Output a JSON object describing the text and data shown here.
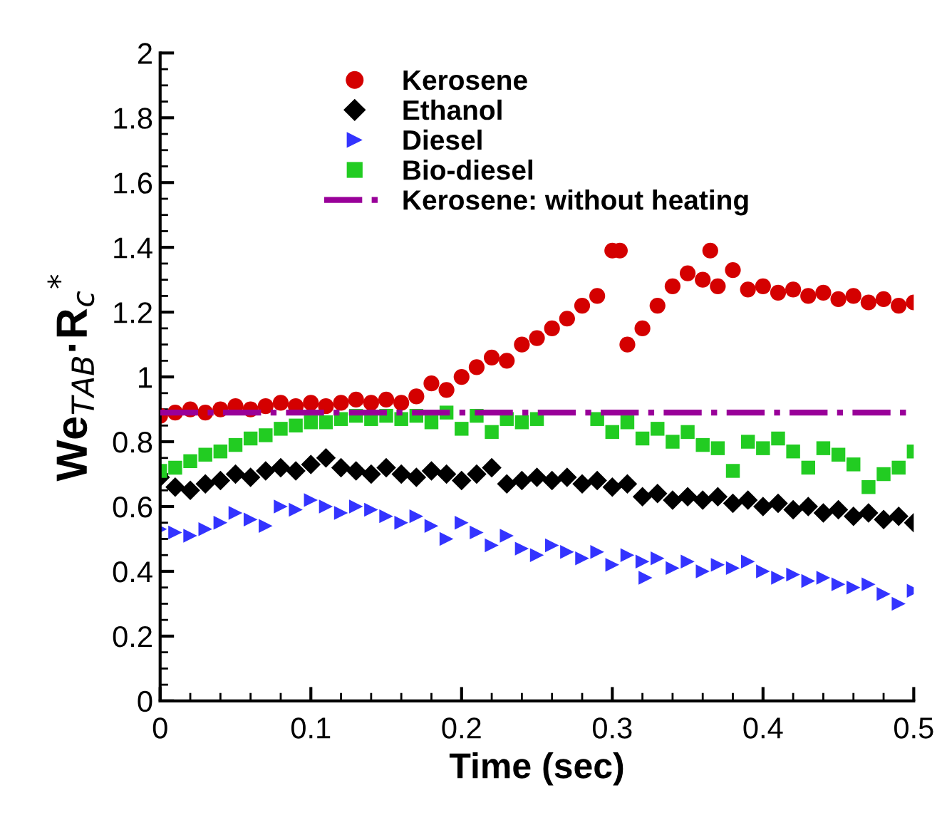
{
  "chart_data": {
    "type": "scatter",
    "xlabel": "Time (sec)",
    "ylabel": "We$_{TAB}$·R$_{c}$$^{*}$",
    "xlim": [
      0,
      0.5
    ],
    "ylim": [
      0,
      2
    ],
    "xticks": [
      0,
      0.1,
      0.2,
      0.3,
      0.4,
      0.5
    ],
    "yticks": [
      0,
      0.2,
      0.4,
      0.6,
      0.8,
      1,
      1.2,
      1.4,
      1.6,
      1.8,
      2
    ],
    "grid": false,
    "legend": "top",
    "series": [
      {
        "name": "Kerosene",
        "color": "#d40000",
        "marker": "circle",
        "x": [
          0,
          0.01,
          0.02,
          0.03,
          0.04,
          0.05,
          0.06,
          0.07,
          0.08,
          0.09,
          0.1,
          0.11,
          0.12,
          0.13,
          0.14,
          0.15,
          0.16,
          0.17,
          0.18,
          0.19,
          0.2,
          0.21,
          0.22,
          0.23,
          0.24,
          0.25,
          0.26,
          0.27,
          0.28,
          0.29,
          0.3,
          0.305,
          0.31,
          0.32,
          0.33,
          0.34,
          0.35,
          0.36,
          0.365,
          0.37,
          0.38,
          0.39,
          0.4,
          0.41,
          0.42,
          0.43,
          0.44,
          0.45,
          0.46,
          0.47,
          0.48,
          0.49,
          0.5
        ],
        "values": [
          0.88,
          0.89,
          0.9,
          0.89,
          0.9,
          0.91,
          0.9,
          0.91,
          0.92,
          0.91,
          0.92,
          0.91,
          0.92,
          0.93,
          0.92,
          0.93,
          0.92,
          0.94,
          0.98,
          0.96,
          1.0,
          1.03,
          1.06,
          1.05,
          1.1,
          1.12,
          1.15,
          1.18,
          1.22,
          1.25,
          1.39,
          1.39,
          1.1,
          1.15,
          1.22,
          1.28,
          1.32,
          1.3,
          1.39,
          1.28,
          1.33,
          1.27,
          1.28,
          1.26,
          1.27,
          1.25,
          1.26,
          1.24,
          1.25,
          1.23,
          1.24,
          1.22,
          1.23
        ]
      },
      {
        "name": "Ethanol",
        "color": "#000000",
        "marker": "diamond",
        "x": [
          0,
          0.01,
          0.02,
          0.03,
          0.04,
          0.05,
          0.06,
          0.07,
          0.08,
          0.09,
          0.1,
          0.11,
          0.12,
          0.13,
          0.14,
          0.15,
          0.16,
          0.17,
          0.18,
          0.19,
          0.2,
          0.21,
          0.22,
          0.23,
          0.24,
          0.25,
          0.26,
          0.27,
          0.28,
          0.29,
          0.3,
          0.31,
          0.32,
          0.33,
          0.34,
          0.35,
          0.36,
          0.37,
          0.38,
          0.39,
          0.4,
          0.41,
          0.42,
          0.43,
          0.44,
          0.45,
          0.46,
          0.47,
          0.48,
          0.49,
          0.5
        ],
        "values": [
          0.69,
          0.66,
          0.65,
          0.67,
          0.68,
          0.7,
          0.69,
          0.71,
          0.72,
          0.71,
          0.73,
          0.75,
          0.72,
          0.71,
          0.7,
          0.72,
          0.7,
          0.69,
          0.71,
          0.7,
          0.68,
          0.7,
          0.72,
          0.67,
          0.68,
          0.69,
          0.68,
          0.69,
          0.67,
          0.68,
          0.66,
          0.67,
          0.63,
          0.64,
          0.62,
          0.63,
          0.62,
          0.63,
          0.61,
          0.62,
          0.6,
          0.61,
          0.59,
          0.6,
          0.58,
          0.59,
          0.57,
          0.58,
          0.56,
          0.57,
          0.55
        ]
      },
      {
        "name": "Diesel",
        "color": "#3333ff",
        "marker": "triangle",
        "x": [
          0,
          0.01,
          0.02,
          0.03,
          0.04,
          0.05,
          0.06,
          0.07,
          0.08,
          0.09,
          0.1,
          0.11,
          0.12,
          0.13,
          0.14,
          0.15,
          0.16,
          0.17,
          0.18,
          0.19,
          0.2,
          0.21,
          0.22,
          0.23,
          0.24,
          0.25,
          0.26,
          0.27,
          0.28,
          0.29,
          0.3,
          0.31,
          0.32,
          0.322,
          0.33,
          0.34,
          0.35,
          0.36,
          0.37,
          0.38,
          0.39,
          0.4,
          0.41,
          0.42,
          0.43,
          0.44,
          0.45,
          0.46,
          0.47,
          0.48,
          0.49,
          0.5
        ],
        "values": [
          0.53,
          0.52,
          0.51,
          0.53,
          0.55,
          0.58,
          0.56,
          0.54,
          0.6,
          0.59,
          0.62,
          0.6,
          0.58,
          0.6,
          0.59,
          0.57,
          0.55,
          0.57,
          0.54,
          0.5,
          0.55,
          0.52,
          0.48,
          0.51,
          0.47,
          0.45,
          0.48,
          0.46,
          0.44,
          0.46,
          0.42,
          0.45,
          0.43,
          0.38,
          0.44,
          0.41,
          0.43,
          0.4,
          0.42,
          0.41,
          0.43,
          0.4,
          0.38,
          0.39,
          0.37,
          0.38,
          0.36,
          0.35,
          0.36,
          0.33,
          0.3,
          0.34
        ]
      },
      {
        "name": "Bio-diesel",
        "color": "#22cc22",
        "marker": "square",
        "x": [
          0,
          0.01,
          0.02,
          0.03,
          0.04,
          0.05,
          0.06,
          0.07,
          0.08,
          0.09,
          0.1,
          0.11,
          0.12,
          0.13,
          0.14,
          0.15,
          0.16,
          0.17,
          0.18,
          0.19,
          0.2,
          0.21,
          0.22,
          0.23,
          0.24,
          0.25,
          0.29,
          0.3,
          0.31,
          0.32,
          0.33,
          0.34,
          0.35,
          0.36,
          0.37,
          0.38,
          0.39,
          0.4,
          0.41,
          0.42,
          0.43,
          0.44,
          0.45,
          0.46,
          0.47,
          0.48,
          0.49,
          0.5
        ],
        "values": [
          0.71,
          0.72,
          0.74,
          0.76,
          0.77,
          0.79,
          0.81,
          0.82,
          0.84,
          0.85,
          0.86,
          0.86,
          0.87,
          0.88,
          0.87,
          0.88,
          0.87,
          0.88,
          0.86,
          0.89,
          0.84,
          0.88,
          0.83,
          0.87,
          0.86,
          0.87,
          0.87,
          0.83,
          0.86,
          0.81,
          0.84,
          0.8,
          0.83,
          0.79,
          0.78,
          0.71,
          0.8,
          0.78,
          0.81,
          0.77,
          0.72,
          0.78,
          0.76,
          0.73,
          0.66,
          0.7,
          0.72,
          0.77
        ]
      }
    ],
    "ref_lines": [
      {
        "axis": "y",
        "value": 0.89,
        "label": "Kerosene: without heating",
        "color": "#990099",
        "line_style": "dashdot"
      }
    ]
  }
}
